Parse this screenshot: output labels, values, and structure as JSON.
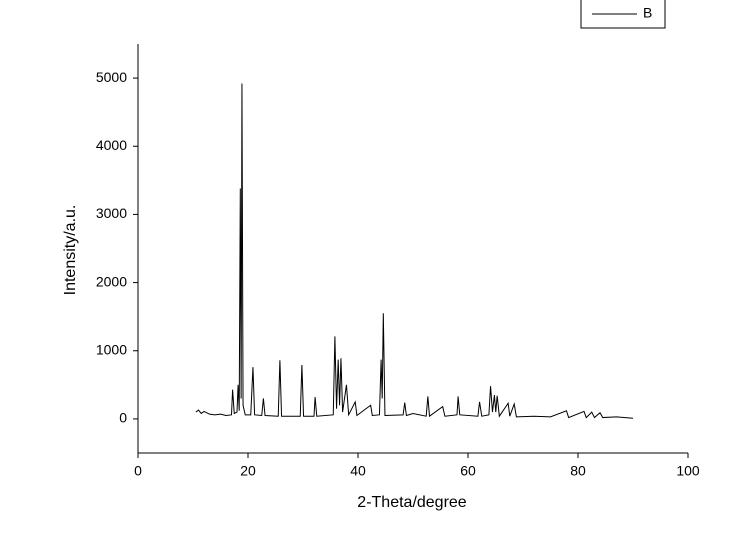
{
  "chart_data": {
    "type": "line",
    "xlabel": "2-Theta/degree",
    "ylabel": "Intensity/a.u.",
    "x": [
      10.5,
      11,
      11.5,
      12,
      13,
      14,
      15,
      16,
      17,
      17.2,
      17.5,
      18,
      18.2,
      18.4,
      18.6,
      18.75,
      18.9,
      19.1,
      19.5,
      20.5,
      20.9,
      21.2,
      22.5,
      22.8,
      23.1,
      25.5,
      25.8,
      26.1,
      29.5,
      29.8,
      30.1,
      32,
      32.2,
      32.5,
      35.5,
      35.8,
      36.1,
      36.4,
      36.65,
      36.9,
      37.2,
      37.9,
      38.3,
      39.5,
      39.8,
      42.3,
      42.6,
      43.9,
      44.2,
      44.4,
      44.6,
      44.9,
      48.2,
      48.5,
      48.8,
      50,
      52.4,
      52.7,
      53,
      55.4,
      55.8,
      58,
      58.2,
      58.5,
      61.8,
      62.1,
      62.5,
      63.8,
      64.1,
      64.45,
      64.8,
      65.05,
      65.3,
      65.7,
      67.3,
      67.6,
      68.4,
      68.8,
      72,
      75,
      77.9,
      78.3,
      81.1,
      81.5,
      82.5,
      83,
      84,
      84.5,
      87,
      90
    ],
    "series": [
      {
        "name": "B",
        "color": "#000000",
        "values": [
          100,
          130,
          80,
          110,
          70,
          60,
          70,
          50,
          60,
          430,
          80,
          100,
          500,
          120,
          3380,
          300,
          4920,
          200,
          60,
          60,
          760,
          60,
          50,
          300,
          50,
          40,
          860,
          40,
          40,
          790,
          40,
          40,
          320,
          40,
          60,
          1210,
          150,
          870,
          200,
          890,
          100,
          500,
          60,
          250,
          50,
          200,
          50,
          60,
          870,
          300,
          1550,
          50,
          60,
          240,
          50,
          80,
          40,
          330,
          40,
          180,
          40,
          60,
          330,
          60,
          40,
          250,
          40,
          60,
          480,
          100,
          350,
          100,
          340,
          40,
          230,
          40,
          220,
          30,
          40,
          30,
          120,
          20,
          110,
          20,
          100,
          20,
          90,
          20,
          30,
          10
        ]
      }
    ],
    "xlim": [
      0,
      100
    ],
    "xticks": [
      0,
      20,
      40,
      60,
      80,
      100
    ],
    "ylim": [
      -500,
      5500
    ],
    "yticks": [
      0,
      1000,
      2000,
      3000,
      4000,
      5000
    ],
    "legend": "top-right"
  }
}
